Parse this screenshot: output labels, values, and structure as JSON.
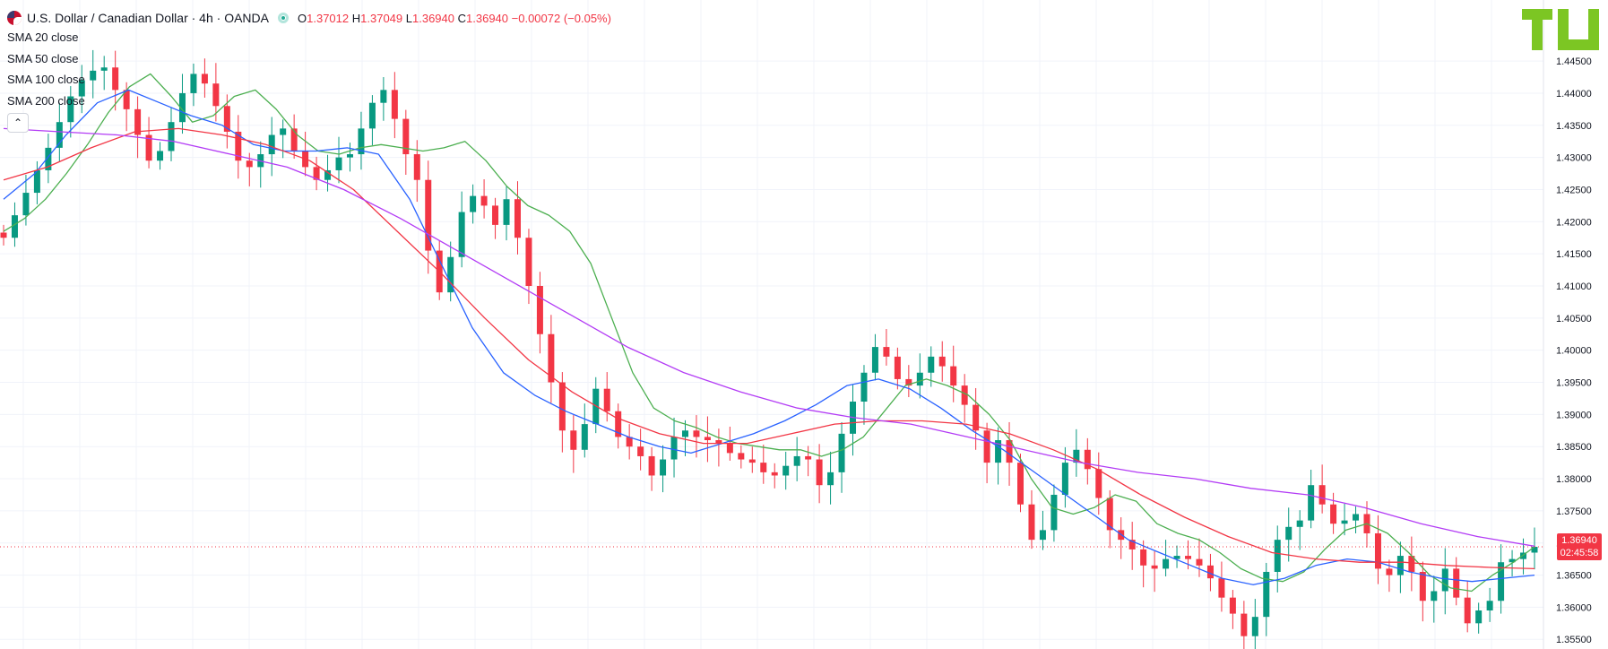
{
  "header": {
    "symbol_title": "U.S. Dollar / Canadian Dollar · 4h · OANDA",
    "open_label": "O",
    "open": "1.37012",
    "high_label": "H",
    "high": "1.37049",
    "low_label": "L",
    "low": "1.36940",
    "close_label": "C",
    "close": "1.36940",
    "change": "−0.00072 (−0.05%)"
  },
  "indicators": [
    {
      "label": "SMA 20 close",
      "color": "#4caf50"
    },
    {
      "label": "SMA 50 close",
      "color": "#2962ff"
    },
    {
      "label": "SMA 100 close",
      "color": "#f23645"
    },
    {
      "label": "SMA 200 close",
      "color": "#b33cf5"
    }
  ],
  "price_tag": {
    "price": "1.36940",
    "countdown": "02:45:58"
  },
  "logo_text": "TU",
  "colors": {
    "up": "#089981",
    "down": "#f23645",
    "grid": "#f0f3fa",
    "axis_text": "#131722"
  },
  "chart_data": {
    "type": "candlestick",
    "interval": "4h",
    "yaxis_ticks": [
      "1.35500",
      "1.36000",
      "1.36500",
      "1.37000",
      "1.37500",
      "1.38000",
      "1.38500",
      "1.39000",
      "1.39500",
      "1.40000",
      "1.40500",
      "1.41000",
      "1.41500",
      "1.42000",
      "1.42500",
      "1.43000",
      "1.43500",
      "1.44000",
      "1.44500"
    ],
    "ylim": [
      1.3535,
      1.4545
    ],
    "last_price": 1.3694,
    "series": [
      {
        "name": "USD/CAD close",
        "values": [
          1.4175,
          1.421,
          1.4245,
          1.428,
          1.4315,
          1.4355,
          1.4395,
          1.442,
          1.4435,
          1.444,
          1.4405,
          1.4375,
          1.4335,
          1.4295,
          1.431,
          1.4355,
          1.44,
          1.443,
          1.4415,
          1.438,
          1.434,
          1.4295,
          1.4285,
          1.4305,
          1.4335,
          1.4345,
          1.431,
          1.4285,
          1.4265,
          1.428,
          1.43,
          1.4305,
          1.4345,
          1.4385,
          1.4405,
          1.436,
          1.4305,
          1.4265,
          1.4155,
          1.409,
          1.4145,
          1.4215,
          1.424,
          1.4225,
          1.4195,
          1.4235,
          1.4175,
          1.41,
          1.4025,
          1.395,
          1.3875,
          1.3845,
          1.3885,
          1.394,
          1.3905,
          1.3865,
          1.385,
          1.3835,
          1.3805,
          1.383,
          1.3865,
          1.3875,
          1.3865,
          1.386,
          1.3855,
          1.384,
          1.383,
          1.3825,
          1.381,
          1.3805,
          1.382,
          1.3835,
          1.383,
          1.379,
          1.381,
          1.387,
          1.392,
          1.3965,
          1.4005,
          1.399,
          1.3955,
          1.3945,
          1.3965,
          1.399,
          1.3975,
          1.3945,
          1.3915,
          1.3875,
          1.3825,
          1.386,
          1.3825,
          1.376,
          1.3705,
          1.372,
          1.3775,
          1.3825,
          1.3845,
          1.3815,
          1.377,
          1.372,
          1.3705,
          1.369,
          1.3665,
          1.366,
          1.3675,
          1.368,
          1.3675,
          1.3665,
          1.3645,
          1.3615,
          1.359,
          1.3555,
          1.3585,
          1.3655,
          1.3705,
          1.3725,
          1.3735,
          1.379,
          1.376,
          1.373,
          1.3735,
          1.3745,
          1.3715,
          1.366,
          1.365,
          1.368,
          1.3655,
          1.361,
          1.3625,
          1.366,
          1.3615,
          1.3575,
          1.3595,
          1.361,
          1.367,
          1.3675,
          1.3685,
          1.3694
        ]
      },
      {
        "name": "SMA 20 close",
        "values": [
          1.4185,
          1.4205,
          1.4235,
          1.4275,
          1.432,
          1.437,
          1.441,
          1.443,
          1.4395,
          1.4355,
          1.4365,
          1.4395,
          1.4405,
          1.4375,
          1.4335,
          1.431,
          1.4305,
          1.4315,
          1.432,
          1.4315,
          1.431,
          1.4315,
          1.4325,
          1.4295,
          1.4255,
          1.4225,
          1.421,
          1.4185,
          1.4135,
          1.405,
          1.3965,
          1.391,
          1.389,
          1.388,
          1.3865,
          1.3855,
          1.385,
          1.3845,
          1.3845,
          1.3835,
          1.3845,
          1.3865,
          1.3905,
          1.3945,
          1.3955,
          1.3945,
          1.393,
          1.39,
          1.386,
          1.38,
          1.3755,
          1.3745,
          1.3755,
          1.3775,
          1.3765,
          1.373,
          1.3715,
          1.3705,
          1.3685,
          1.366,
          1.3645,
          1.364,
          1.3655,
          1.369,
          1.372,
          1.373,
          1.3715,
          1.3685,
          1.365,
          1.363,
          1.3625,
          1.365,
          1.367,
          1.3694
        ]
      },
      {
        "name": "SMA 50 close",
        "values": [
          1.4235,
          1.4275,
          1.4335,
          1.4385,
          1.4405,
          1.4385,
          1.4365,
          1.435,
          1.432,
          1.431,
          1.431,
          1.4315,
          1.4305,
          1.4235,
          1.4135,
          1.4035,
          1.3965,
          1.393,
          1.3905,
          1.3885,
          1.3865,
          1.385,
          1.384,
          1.3855,
          1.387,
          1.389,
          1.3915,
          1.3945,
          1.3955,
          1.394,
          1.391,
          1.3875,
          1.3845,
          1.381,
          1.3775,
          1.374,
          1.3705,
          1.3685,
          1.3665,
          1.3645,
          1.3635,
          1.3645,
          1.3665,
          1.3675,
          1.367,
          1.3655,
          1.3645,
          1.364,
          1.3645,
          1.365
        ]
      },
      {
        "name": "SMA 100 close",
        "values": [
          1.4265,
          1.4285,
          1.4315,
          1.434,
          1.4345,
          1.4335,
          1.432,
          1.4295,
          1.425,
          1.4185,
          1.412,
          1.405,
          1.3985,
          1.3935,
          1.3895,
          1.387,
          1.3855,
          1.3855,
          1.387,
          1.3885,
          1.389,
          1.389,
          1.3885,
          1.387,
          1.3845,
          1.3815,
          1.3775,
          1.374,
          1.371,
          1.3685,
          1.3675,
          1.367,
          1.367,
          1.3665,
          1.3662,
          1.366
        ]
      },
      {
        "name": "SMA 200 close",
        "values": [
          1.4345,
          1.434,
          1.4335,
          1.4325,
          1.4305,
          1.4285,
          1.425,
          1.4205,
          1.4155,
          1.4105,
          1.4055,
          1.4005,
          1.3965,
          1.3935,
          1.391,
          1.3895,
          1.3885,
          1.3865,
          1.3845,
          1.3825,
          1.381,
          1.38,
          1.3785,
          1.3775,
          1.3755,
          1.373,
          1.371,
          1.3695
        ]
      }
    ]
  }
}
